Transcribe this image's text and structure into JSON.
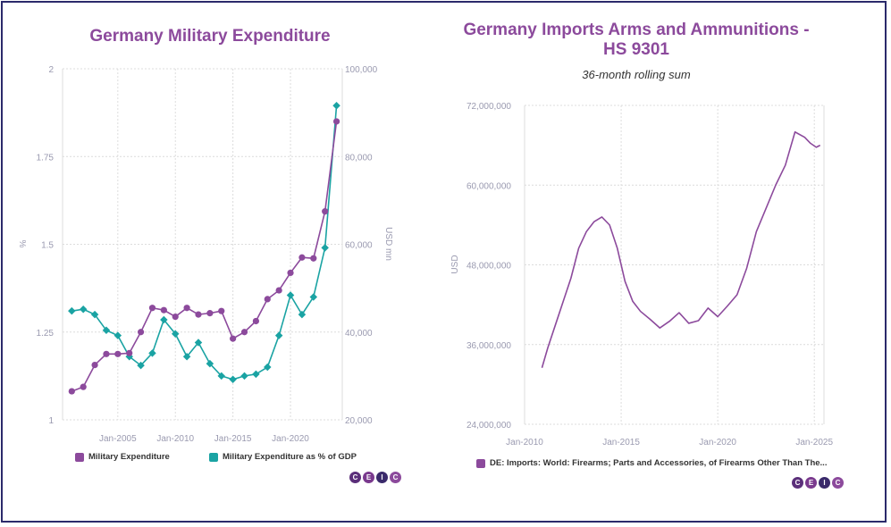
{
  "charts": [
    {
      "title": "Germany Military Expenditure",
      "y_left_label": "%",
      "y_right_label": "USD mn",
      "legend": [
        "Military Expenditure",
        "Military Expenditure as % of GDP"
      ],
      "colors": {
        "expenditure": "#8c4a9c",
        "gdp_share": "#1aa3a3"
      },
      "logo_letters": [
        "C",
        "E",
        "I",
        "C"
      ]
    },
    {
      "title": "Germany Imports Arms and Ammunitions - HS 9301",
      "subtitle": "36-month rolling sum",
      "y_label": "USD",
      "legend": [
        "DE: Imports: World: Firearms; Parts and Accessories, of Firearms Other Than The..."
      ],
      "colors": {
        "series": "#8c4a9c"
      },
      "logo_letters": [
        "C",
        "E",
        "I",
        "C"
      ]
    }
  ],
  "chart_data": [
    {
      "type": "line",
      "title": "Germany Military Expenditure",
      "x": [
        2001,
        2002,
        2003,
        2004,
        2005,
        2006,
        2007,
        2008,
        2009,
        2010,
        2011,
        2012,
        2013,
        2014,
        2015,
        2016,
        2017,
        2018,
        2019,
        2020,
        2021,
        2022,
        2023,
        2024
      ],
      "x_ticks": [
        "Jan-2005",
        "Jan-2010",
        "Jan-2015",
        "Jan-2020"
      ],
      "y_left_ticks": [
        "1",
        "1.25",
        "1.5",
        "1.75",
        "2"
      ],
      "y_right_ticks": [
        "20,000",
        "40,000",
        "60,000",
        "80,000",
        "100,000"
      ],
      "y_left_label": "%",
      "y_right_label": "USD mn",
      "y_left_lim": [
        1,
        2
      ],
      "y_right_lim": [
        20000,
        100000
      ],
      "series": [
        {
          "name": "Military Expenditure",
          "axis": "right",
          "values": [
            26500,
            27500,
            32500,
            35000,
            35000,
            35200,
            40000,
            45500,
            45000,
            43500,
            45500,
            44000,
            44300,
            44800,
            38500,
            40000,
            42500,
            47500,
            49500,
            53500,
            57000,
            56800,
            67500,
            88000
          ]
        },
        {
          "name": "Military Expenditure as % of GDP",
          "axis": "left",
          "values": [
            1.31,
            1.315,
            1.3,
            1.255,
            1.24,
            1.18,
            1.155,
            1.19,
            1.285,
            1.245,
            1.18,
            1.22,
            1.16,
            1.125,
            1.115,
            1.125,
            1.13,
            1.15,
            1.24,
            1.355,
            1.3,
            1.35,
            1.49,
            1.895
          ]
        }
      ],
      "grid": true
    },
    {
      "type": "line",
      "title": "Germany Imports Arms and Ammunitions - HS 9301",
      "subtitle": "36-month rolling sum",
      "x": [
        2010.9,
        2011.2,
        2011.6,
        2012.0,
        2012.4,
        2012.8,
        2013.2,
        2013.6,
        2014.0,
        2014.4,
        2014.8,
        2015.2,
        2015.6,
        2016.0,
        2016.5,
        2017.0,
        2017.5,
        2018.0,
        2018.5,
        2019.0,
        2019.5,
        2020.0,
        2020.5,
        2021.0,
        2021.5,
        2022.0,
        2022.5,
        2023.0,
        2023.5,
        2024.0,
        2024.5,
        2024.8,
        2025.1,
        2025.3
      ],
      "x_ticks": [
        "Jan-2010",
        "Jan-2015",
        "Jan-2020",
        "Jan-2025"
      ],
      "y_ticks": [
        "24,000,000",
        "36,000,000",
        "48,000,000",
        "60,000,000",
        "72,000,000"
      ],
      "y_label": "USD",
      "ylim": [
        24000000,
        72000000
      ],
      "series": [
        {
          "name": "DE: Imports: World: Firearms; Parts and Accessories, of Firearms Other Than The...",
          "values": [
            32500000,
            35500000,
            39000000,
            42500000,
            46000000,
            50500000,
            53000000,
            54500000,
            55200000,
            54000000,
            50500000,
            45500000,
            42500000,
            41000000,
            39800000,
            38500000,
            39500000,
            40800000,
            39200000,
            39600000,
            41500000,
            40200000,
            41800000,
            43500000,
            47500000,
            53000000,
            56500000,
            60000000,
            63000000,
            68000000,
            67200000,
            66300000,
            65700000,
            66000000
          ]
        }
      ],
      "grid": true
    }
  ]
}
